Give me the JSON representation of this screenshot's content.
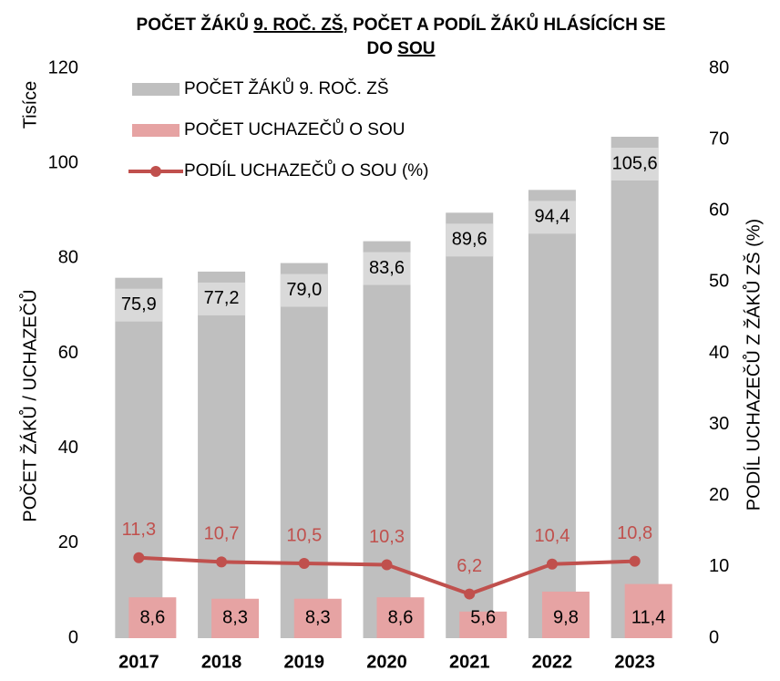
{
  "chart_data": {
    "type": "bar",
    "title_lines": [
      [
        {
          "text": "POČET ŽÁKŮ ",
          "underline": false
        },
        {
          "text": "9. ROČ. ZŠ",
          "underline": true
        },
        {
          "text": ", POČET A PODÍL  ŽÁKŮ HLÁSÍCÍCH SE",
          "underline": false
        }
      ],
      [
        {
          "text": "DO ",
          "underline": false
        },
        {
          "text": "SOU",
          "underline": true
        }
      ]
    ],
    "y_label": "POČET ŽÁKŮ / UCHAZEČŮ",
    "y_unit_label": "Tisíce",
    "y2_label": "PODÍL UCHAZEČŮ Z ŽÁKŮ ZŠ (%)",
    "categories": [
      "2017",
      "2018",
      "2019",
      "2020",
      "2021",
      "2022",
      "2023"
    ],
    "series": [
      {
        "name": "POČET ŽÁKŮ 9. ROČ. ZŠ",
        "type": "bar",
        "color": "#bfbfbf",
        "values": [
          75.9,
          77.2,
          79.0,
          83.6,
          89.6,
          94.4,
          105.6
        ],
        "value_labels": [
          "75,9",
          "77,2",
          "79,0",
          "83,6",
          "89,6",
          "94,4",
          "105,6"
        ]
      },
      {
        "name": "POČET UCHAZEČŮ O SOU",
        "type": "bar",
        "color": "#e6a3a3",
        "values": [
          8.6,
          8.3,
          8.3,
          8.6,
          5.6,
          9.8,
          11.4
        ],
        "value_labels": [
          "8,6",
          "8,3",
          "8,3",
          "8,6",
          "5,6",
          "9,8",
          "11,4"
        ]
      },
      {
        "name": "PODÍL UCHAZEČŮ O SOU (%)",
        "type": "line",
        "axis": "y2",
        "color": "#c0504d",
        "values": [
          11.3,
          10.7,
          10.5,
          10.3,
          6.2,
          10.4,
          10.8
        ],
        "value_labels": [
          "11,3",
          "10,7",
          "10,5",
          "10,3",
          "6,2",
          "10,4",
          "10,8"
        ]
      }
    ],
    "ylim": [
      0,
      120
    ],
    "yticks": [
      0,
      20,
      40,
      60,
      80,
      100,
      120
    ],
    "y2lim": [
      0,
      80
    ],
    "y2ticks": [
      0,
      10,
      20,
      30,
      40,
      50,
      60,
      70,
      80
    ],
    "grid": false
  }
}
